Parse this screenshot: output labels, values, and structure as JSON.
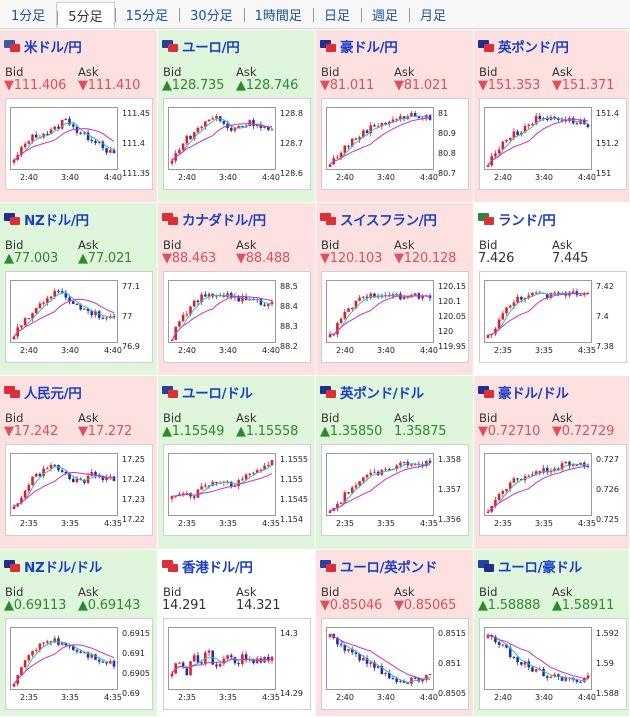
{
  "tabs": [
    {
      "label": "1分足",
      "active": false
    },
    {
      "label": "5分足",
      "active": true
    },
    {
      "label": "15分足",
      "active": false
    },
    {
      "label": "30分足",
      "active": false
    },
    {
      "label": "1時間足",
      "active": false
    },
    {
      "label": "日足",
      "active": false
    },
    {
      "label": "週足",
      "active": false
    },
    {
      "label": "月足",
      "active": false
    }
  ],
  "labels": {
    "bid": "Bid",
    "ask": "Ask"
  },
  "colors": {
    "down_bg": "#fde0e0",
    "up_bg": "#dff5dc",
    "down_text": "#e0505a",
    "up_text": "#2b8a2b",
    "pair_link": "#1a3ec4",
    "candle_up": "#e21f26",
    "candle_down": "#1c2fb0",
    "ma_pink": "#cc33cc",
    "ma_teal": "#33bbbb"
  },
  "cards": [
    {
      "pair": "米ドル/円",
      "flag_colors": [
        "#3c5aa8",
        "#d9303a"
      ],
      "direction": "down",
      "bid": "▼111.406",
      "ask": "▼111.410",
      "y_ticks": [
        "111.45",
        "111.4",
        "111.35"
      ],
      "x_ticks": [
        "2:40",
        "3:40",
        "4:40"
      ],
      "trend": [
        0.1,
        0.3,
        0.5,
        0.55,
        0.6,
        0.62,
        0.7,
        0.85,
        0.8,
        0.6,
        0.55,
        0.5,
        0.45,
        0.3,
        0.2
      ]
    },
    {
      "pair": "ユーロ/円",
      "flag_colors": [
        "#2a3f9e",
        "#d9303a"
      ],
      "direction": "up",
      "bid": "▲128.735",
      "ask": "▲128.746",
      "y_ticks": [
        "128.8",
        "128.7",
        "128.6"
      ],
      "x_ticks": [
        "2:40",
        "3:40",
        "4:40"
      ],
      "trend": [
        0.1,
        0.35,
        0.5,
        0.6,
        0.72,
        0.85,
        0.9,
        0.8,
        0.65,
        0.72,
        0.75,
        0.8,
        0.78,
        0.7,
        0.65
      ]
    },
    {
      "pair": "豪ドル/円",
      "flag_colors": [
        "#1f2f8a",
        "#d9303a"
      ],
      "direction": "down",
      "bid": "▼81.011",
      "ask": "▼81.021",
      "y_ticks": [
        "81",
        "80.9",
        "80.8",
        "80.7"
      ],
      "x_ticks": [
        "2:40",
        "3:40",
        "4:40"
      ],
      "trend": [
        0.05,
        0.2,
        0.35,
        0.45,
        0.55,
        0.65,
        0.72,
        0.78,
        0.82,
        0.86,
        0.88,
        0.9,
        0.93,
        0.9,
        0.85
      ]
    },
    {
      "pair": "英ポンド/円",
      "flag_colors": [
        "#1f2f8a",
        "#d9303a"
      ],
      "direction": "down",
      "bid": "▼151.353",
      "ask": "▼151.371",
      "y_ticks": [
        "151.4",
        "151.2",
        "151"
      ],
      "x_ticks": [
        "2:40",
        "3:40",
        "4:40"
      ],
      "trend": [
        0.05,
        0.25,
        0.45,
        0.55,
        0.6,
        0.7,
        0.8,
        0.88,
        0.85,
        0.9,
        0.88,
        0.84,
        0.82,
        0.8,
        0.75
      ]
    },
    {
      "pair": "NZドル/円",
      "flag_colors": [
        "#1f2f8a",
        "#d9303a"
      ],
      "direction": "up",
      "bid": "▲77.003",
      "ask": "▲77.021",
      "y_ticks": [
        "77.1",
        "77",
        "76.9"
      ],
      "x_ticks": [
        "2:40",
        "3:40",
        "4:40"
      ],
      "trend": [
        0.1,
        0.25,
        0.4,
        0.55,
        0.7,
        0.8,
        0.85,
        0.82,
        0.7,
        0.6,
        0.55,
        0.5,
        0.45,
        0.4,
        0.35
      ]
    },
    {
      "pair": "カナダドル/円",
      "flag_colors": [
        "#d9303a",
        "#d9303a"
      ],
      "direction": "down",
      "bid": "▼88.463",
      "ask": "▼88.488",
      "y_ticks": [
        "88.5",
        "88.4",
        "88.3",
        "88.2"
      ],
      "x_ticks": [
        "2:40",
        "3:40",
        "4:40"
      ],
      "trend": [
        0.05,
        0.3,
        0.5,
        0.65,
        0.75,
        0.78,
        0.8,
        0.82,
        0.8,
        0.75,
        0.72,
        0.7,
        0.68,
        0.66,
        0.65
      ]
    },
    {
      "pair": "スイスフラン/円",
      "flag_colors": [
        "#d9303a",
        "#d9303a"
      ],
      "direction": "down",
      "bid": "▼120.103",
      "ask": "▼120.128",
      "y_ticks": [
        "120.15",
        "120.1",
        "120.05",
        "120",
        "119.95"
      ],
      "x_ticks": [
        "2:40",
        "3:40",
        "4:40"
      ],
      "trend": [
        0.05,
        0.25,
        0.45,
        0.6,
        0.7,
        0.75,
        0.8,
        0.85,
        0.82,
        0.78,
        0.75,
        0.78,
        0.8,
        0.76,
        0.74
      ]
    },
    {
      "pair": "ランド/円",
      "flag_colors": [
        "#2a8a3a",
        "#d9303a"
      ],
      "direction": "flat",
      "bid": "7.426",
      "ask": "7.445",
      "y_ticks": [
        "7.42",
        "7.4",
        "7.38"
      ],
      "x_ticks": [
        "2:35",
        "3:35",
        "4:35"
      ],
      "trend": [
        0.05,
        0.25,
        0.45,
        0.6,
        0.72,
        0.8,
        0.82,
        0.8,
        0.78,
        0.8,
        0.82,
        0.84,
        0.85,
        0.83,
        0.86
      ]
    },
    {
      "pair": "人民元/円",
      "flag_colors": [
        "#d9303a",
        "#d9303a"
      ],
      "direction": "down",
      "bid": "▼17.242",
      "ask": "▼17.272",
      "y_ticks": [
        "17.25",
        "17.24",
        "17.23",
        "17.22"
      ],
      "x_ticks": [
        "2:35",
        "3:35",
        "4:35"
      ],
      "trend": [
        0.1,
        0.3,
        0.5,
        0.65,
        0.75,
        0.85,
        0.8,
        0.7,
        0.6,
        0.55,
        0.6,
        0.7,
        0.65,
        0.6,
        0.62
      ]
    },
    {
      "pair": "ユーロ/ドル",
      "flag_colors": [
        "#2a3f9e",
        "#d9303a"
      ],
      "direction": "up",
      "bid": "▲1.15549",
      "ask": "▲1.15558",
      "y_ticks": [
        "1.1555",
        "1.155",
        "1.1545",
        "1.154"
      ],
      "x_ticks": [
        "2:35",
        "3:35",
        "4:35"
      ],
      "trend": [
        0.3,
        0.35,
        0.4,
        0.3,
        0.45,
        0.5,
        0.6,
        0.55,
        0.5,
        0.55,
        0.62,
        0.7,
        0.78,
        0.85,
        0.9
      ]
    },
    {
      "pair": "英ポンド/ドル",
      "flag_colors": [
        "#1f2f8a",
        "#d9303a"
      ],
      "direction": "up",
      "bid": "▲1.35850",
      "ask": "1.35875",
      "y_ticks": [
        "1.358",
        "1.357",
        "1.356"
      ],
      "x_ticks": [
        "2:35",
        "3:35",
        "4:35"
      ],
      "trend": [
        0.05,
        0.15,
        0.3,
        0.45,
        0.55,
        0.62,
        0.7,
        0.75,
        0.8,
        0.84,
        0.86,
        0.88,
        0.9,
        0.9,
        0.88
      ]
    },
    {
      "pair": "豪ドル/ドル",
      "flag_colors": [
        "#1f2f8a",
        "#d9303a"
      ],
      "direction": "down",
      "bid": "▼0.72710",
      "ask": "▼0.72729",
      "y_ticks": [
        "0.727",
        "0.726",
        "0.725"
      ],
      "x_ticks": [
        "2:35",
        "3:35",
        "4:35"
      ],
      "trend": [
        0.05,
        0.2,
        0.35,
        0.5,
        0.6,
        0.65,
        0.7,
        0.72,
        0.75,
        0.8,
        0.82,
        0.86,
        0.9,
        0.88,
        0.84
      ]
    },
    {
      "pair": "NZドル/ドル",
      "flag_colors": [
        "#1f2f8a",
        "#d9303a"
      ],
      "direction": "up",
      "bid": "▲0.69113",
      "ask": "▲0.69143",
      "y_ticks": [
        "0.6915",
        "0.691",
        "0.6905",
        "0.69"
      ],
      "x_ticks": [
        "2:35",
        "3:35",
        "4:35"
      ],
      "trend": [
        0.1,
        0.3,
        0.55,
        0.7,
        0.8,
        0.85,
        0.82,
        0.78,
        0.72,
        0.65,
        0.6,
        0.55,
        0.5,
        0.45,
        0.4
      ]
    },
    {
      "pair": "香港ドル/円",
      "flag_colors": [
        "#d9303a",
        "#d9303a"
      ],
      "direction": "flat",
      "bid": "14.291",
      "ask": "14.321",
      "y_ticks": [
        "14.3",
        "14.29"
      ],
      "x_ticks": [
        "2:35",
        "3:35",
        "4:35"
      ],
      "trend": [
        0.3,
        0.5,
        0.2,
        0.6,
        0.4,
        0.7,
        0.3,
        0.5,
        0.65,
        0.4,
        0.55,
        0.5,
        0.45,
        0.5,
        0.48
      ]
    },
    {
      "pair": "ユーロ/英ポンド",
      "flag_colors": [
        "#2a3f9e",
        "#d9303a"
      ],
      "direction": "down",
      "bid": "▼0.85046",
      "ask": "▼0.85065",
      "y_ticks": [
        "0.8515",
        "0.851",
        "0.8505"
      ],
      "x_ticks": [
        "2:40",
        "3:40",
        "4:40"
      ],
      "trend": [
        0.9,
        0.8,
        0.7,
        0.6,
        0.52,
        0.45,
        0.38,
        0.3,
        0.22,
        0.15,
        0.12,
        0.1,
        0.12,
        0.15,
        0.2
      ]
    },
    {
      "pair": "ユーロ/豪ドル",
      "flag_colors": [
        "#2a3f9e",
        "#1f2f8a"
      ],
      "direction": "up",
      "bid": "▲1.58888",
      "ask": "▲1.58911",
      "y_ticks": [
        "1.592",
        "1.59",
        "1.588"
      ],
      "x_ticks": [
        "2:40",
        "3:40",
        "4:40"
      ],
      "trend": [
        0.9,
        0.82,
        0.72,
        0.6,
        0.5,
        0.42,
        0.35,
        0.28,
        0.22,
        0.18,
        0.15,
        0.12,
        0.1,
        0.15,
        0.2
      ]
    }
  ]
}
